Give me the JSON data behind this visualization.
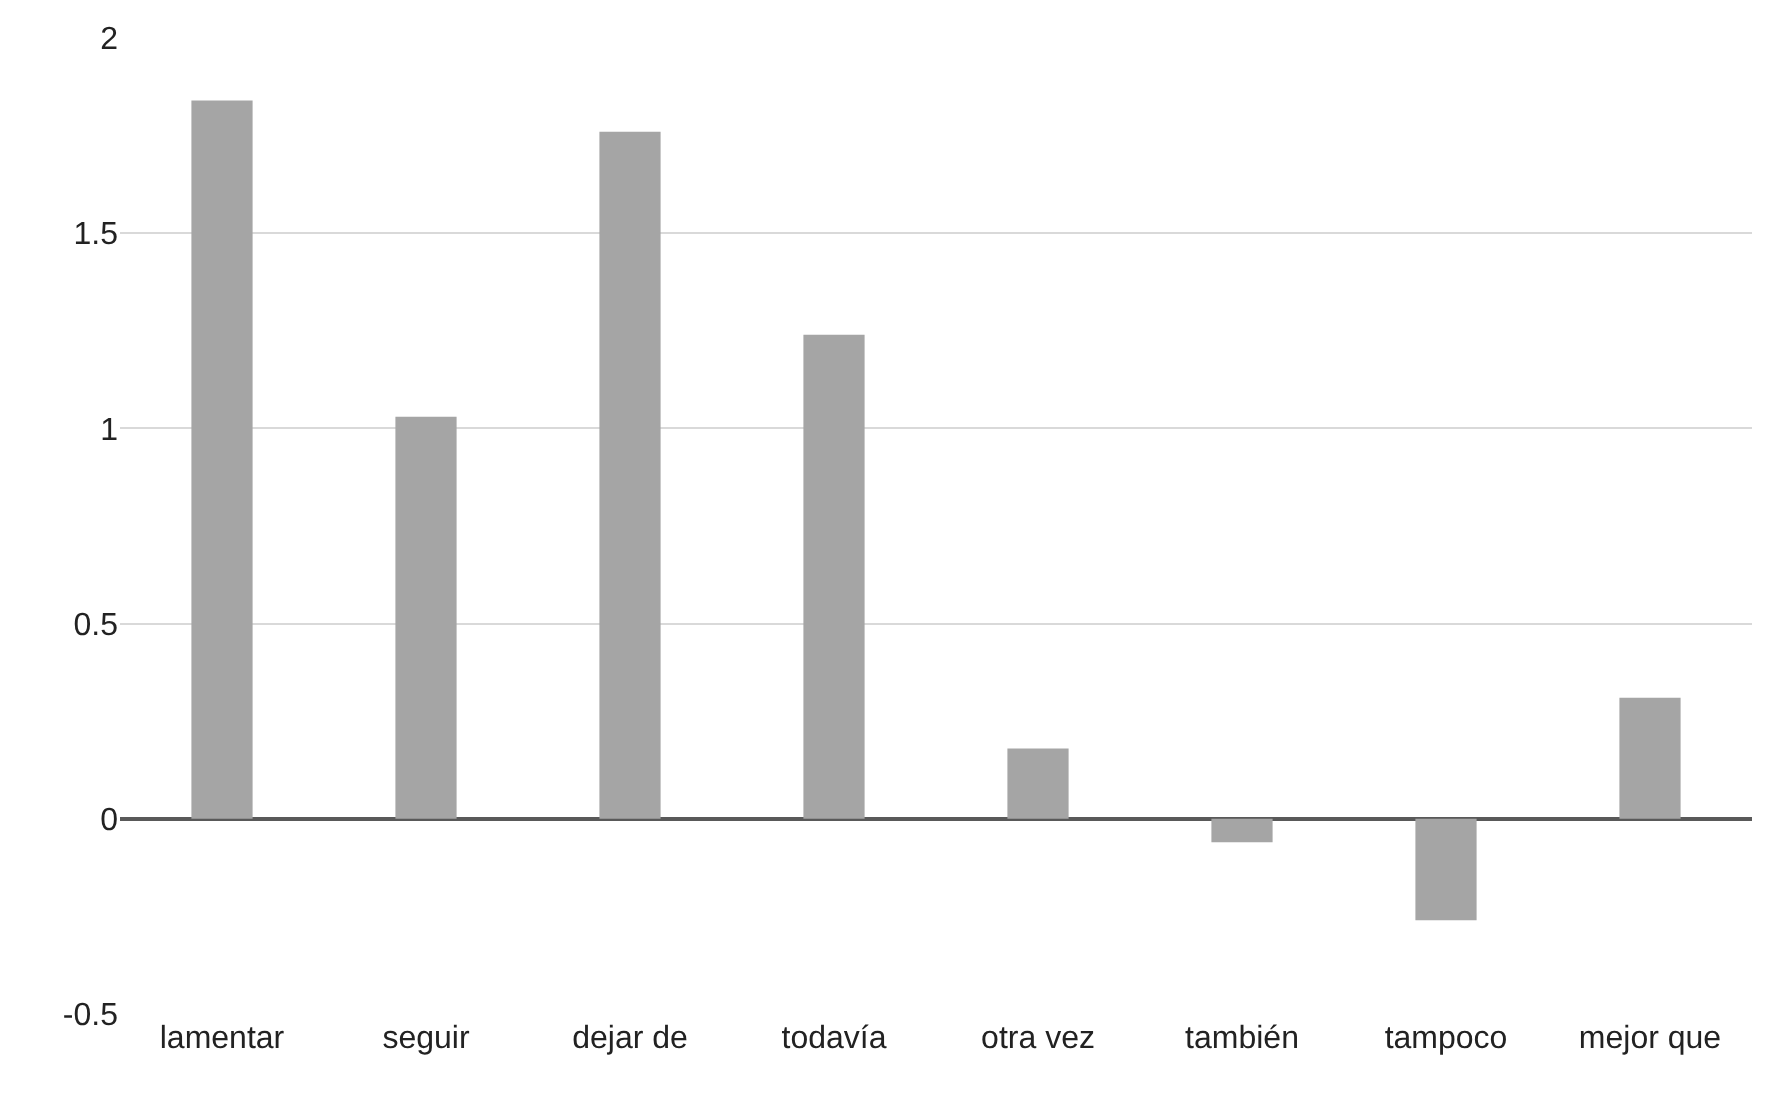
{
  "chart_data": {
    "type": "bar",
    "categories": [
      "lamentar",
      "seguir",
      "dejar de",
      "todavía",
      "otra vez",
      "también",
      "tampoco",
      "mejor que"
    ],
    "values": [
      1.84,
      1.03,
      1.76,
      1.24,
      0.18,
      -0.06,
      -0.26,
      0.31
    ],
    "color": "#a5a5a5",
    "ylim": [
      -0.5,
      2
    ],
    "yticks": [
      -0.5,
      0,
      0.5,
      1,
      1.5,
      2
    ],
    "grid": "y"
  }
}
